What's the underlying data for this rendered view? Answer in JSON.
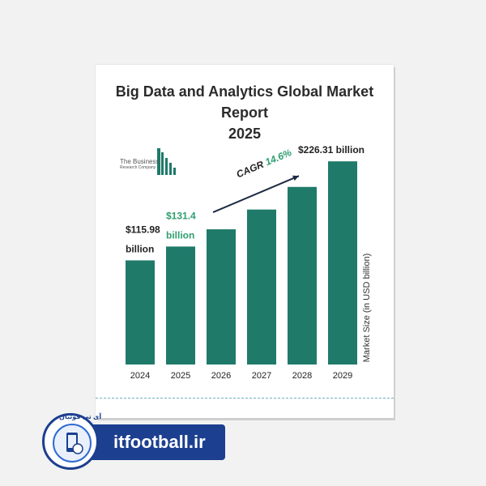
{
  "chart_data": {
    "type": "bar",
    "title": "Big Data and Analytics Global Market Report 2025",
    "title_lines": [
      "Big Data and Analytics Global Market Report",
      "2025"
    ],
    "categories": [
      "2024",
      "2025",
      "2026",
      "2027",
      "2028",
      "2029"
    ],
    "values": [
      115.98,
      131.4,
      150.6,
      172.6,
      197.8,
      226.31
    ],
    "ylabel": "Market Size (in USD billion)",
    "xlabel": "",
    "ylim": [
      0,
      240
    ],
    "grid": false,
    "bar_color": "#1f7a6a",
    "data_labels": [
      {
        "category": "2024",
        "line1": "$115.98",
        "line2": "billion",
        "color": "#222222"
      },
      {
        "category": "2025",
        "line1": "$131.4",
        "line2": "billion",
        "color": "#2e9e6e"
      },
      {
        "category": "2029",
        "line1": "$226.31 billion",
        "line2": "",
        "color": "#222222"
      }
    ],
    "annotation": {
      "text_cagr": "CAGR",
      "text_value": "14.6%",
      "cagr_color": "#222222",
      "value_color": "#2e9e6e",
      "from_category": "2026",
      "to_category": "2029"
    }
  },
  "logo": {
    "line1": "The Business",
    "line2": "Research Company",
    "icon": "building-bars-icon"
  },
  "watermark": {
    "text": "itfootball.ir",
    "badge_text": "آی تی فوتبال",
    "color": "#1c3f8f"
  }
}
